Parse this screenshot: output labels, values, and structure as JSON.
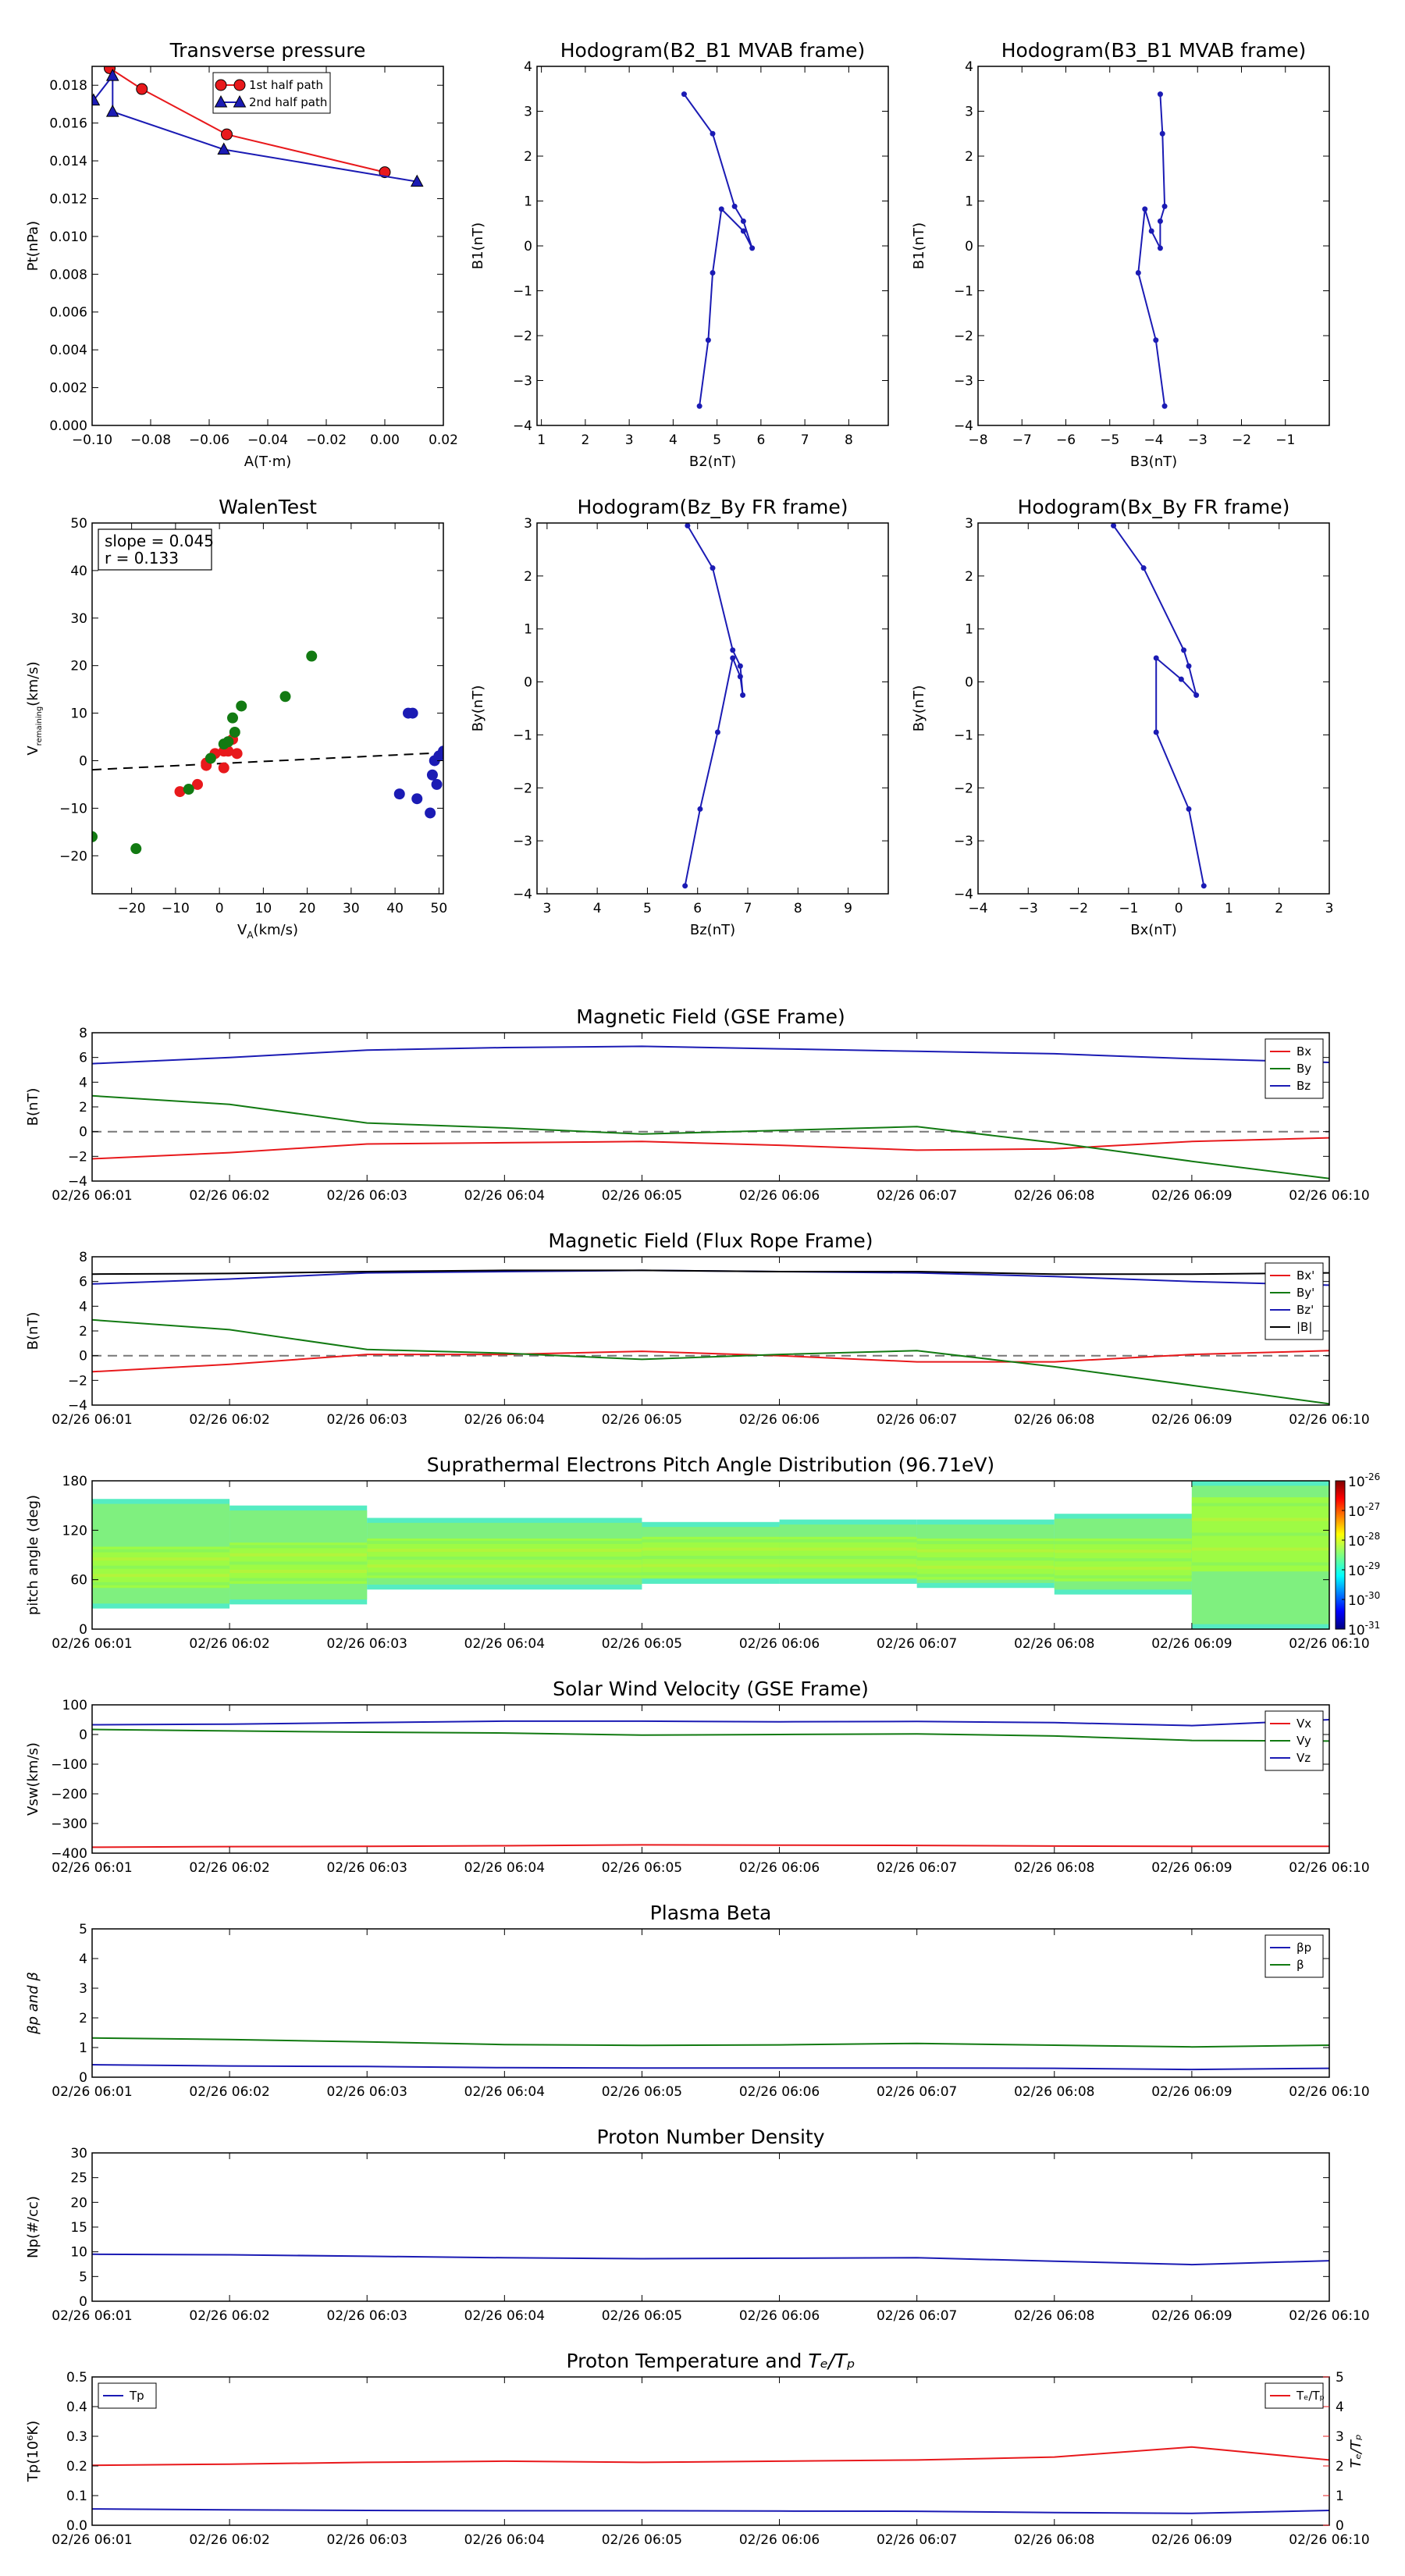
{
  "chart_data": [
    {
      "id": "tp",
      "type": "line",
      "title": "Transverse pressure",
      "xlabel": "A(T·m)",
      "ylabel": "Pt(nPa)",
      "xlim": [
        -0.1,
        0.02
      ],
      "ylim": [
        0.0,
        0.019
      ],
      "xticks": [
        -0.1,
        -0.08,
        -0.06,
        -0.04,
        -0.02,
        0.0,
        0.02
      ],
      "xtick_labels": [
        "−0.10",
        "−0.08",
        "−0.06",
        "−0.04",
        "−0.02",
        "0.00",
        "0.02"
      ],
      "yticks": [
        0.0,
        0.002,
        0.004,
        0.006,
        0.008,
        0.01,
        0.012,
        0.014,
        0.016,
        0.018
      ],
      "ytick_labels": [
        "0.000",
        "0.002",
        "0.004",
        "0.006",
        "0.008",
        "0.010",
        "0.012",
        "0.014",
        "0.016",
        "0.018"
      ],
      "legend_position": "top-center",
      "series": [
        {
          "name": "1st half path",
          "color": "#e8191c",
          "marker": "circle",
          "x": [
            -0.0995,
            -0.094,
            -0.083,
            -0.054,
            0.0
          ],
          "y": [
            0.0195,
            0.0189,
            0.0178,
            0.0154,
            0.0134
          ]
        },
        {
          "name": "2nd half path",
          "color": "#1b1bb4",
          "marker": "triangle",
          "x": [
            -0.0995,
            -0.093,
            -0.093,
            -0.055,
            0.011
          ],
          "y": [
            0.0172,
            0.0185,
            0.0166,
            0.0146,
            0.0129
          ]
        }
      ]
    },
    {
      "id": "h1",
      "type": "line",
      "title": "Hodogram(B2_B1 MVAB frame)",
      "xlabel": "B2(nT)",
      "ylabel": "B1(nT)",
      "xlim": [
        0.9,
        8.9
      ],
      "ylim": [
        -4,
        4
      ],
      "xticks": [
        1,
        2,
        3,
        4,
        5,
        6,
        7,
        8
      ],
      "xtick_labels": [
        "1",
        "2",
        "3",
        "4",
        "5",
        "6",
        "7",
        "8"
      ],
      "yticks": [
        -4,
        -3,
        -2,
        -1,
        0,
        1,
        2,
        3,
        4
      ],
      "ytick_labels": [
        "−4",
        "−3",
        "−2",
        "−1",
        "0",
        "1",
        "2",
        "3",
        "4"
      ],
      "series": [
        {
          "color": "#1b1bb4",
          "marker": "dot",
          "x": [
            4.25,
            4.9,
            5.4,
            5.6,
            5.8,
            5.6,
            5.1,
            4.9,
            4.8,
            4.6
          ],
          "y": [
            3.38,
            2.5,
            0.88,
            0.55,
            -0.05,
            0.33,
            0.82,
            -0.6,
            -2.1,
            -3.57
          ]
        }
      ]
    },
    {
      "id": "h2",
      "type": "line",
      "title": "Hodogram(B3_B1 MVAB frame)",
      "xlabel": "B3(nT)",
      "ylabel": "B1(nT)",
      "xlim": [
        -8,
        0
      ],
      "ylim": [
        -4,
        4
      ],
      "xticks": [
        -8,
        -7,
        -6,
        -5,
        -4,
        -3,
        -2,
        -1
      ],
      "xtick_labels": [
        "−8",
        "−7",
        "−6",
        "−5",
        "−4",
        "−3",
        "−2",
        "−1"
      ],
      "yticks": [
        -4,
        -3,
        -2,
        -1,
        0,
        1,
        2,
        3,
        4
      ],
      "ytick_labels": [
        "−4",
        "−3",
        "−2",
        "−1",
        "0",
        "1",
        "2",
        "3",
        "4"
      ],
      "series": [
        {
          "color": "#1b1bb4",
          "marker": "dot",
          "x": [
            -3.85,
            -3.8,
            -3.75,
            -3.85,
            -3.85,
            -4.05,
            -4.2,
            -4.35,
            -3.95,
            -3.75
          ],
          "y": [
            3.38,
            2.5,
            0.88,
            0.55,
            -0.05,
            0.33,
            0.82,
            -0.6,
            -2.1,
            -3.57
          ]
        }
      ]
    },
    {
      "id": "walen",
      "type": "scatter",
      "title": "WalenTest",
      "xlabel": "V",
      "xlabel_sub": "A",
      "xlabel_unit": "(km/s)",
      "ylabel": "V",
      "ylabel_sub": "remaining",
      "ylabel_unit": "(km/s)",
      "xlim": [
        -29,
        51
      ],
      "ylim": [
        -28,
        50
      ],
      "xticks": [
        -20,
        -10,
        0,
        10,
        20,
        30,
        40,
        50
      ],
      "xtick_labels": [
        "−20",
        "−10",
        "0",
        "10",
        "20",
        "30",
        "40",
        "50"
      ],
      "yticks": [
        -20,
        -10,
        0,
        10,
        20,
        30,
        40,
        50
      ],
      "ytick_labels": [
        "−20",
        "−10",
        "0",
        "10",
        "20",
        "30",
        "40",
        "50"
      ],
      "annotation": [
        "slope = 0.045",
        "r = 0.133"
      ],
      "fit_line": {
        "slope": 0.045,
        "intercept": -0.6,
        "color": "#000000",
        "dashed": true
      },
      "series": [
        {
          "color": "#e8191c",
          "x": [
            -9,
            -5,
            -3,
            -3,
            -1,
            1,
            1,
            2,
            3,
            4
          ],
          "y": [
            -6.5,
            -5,
            -1,
            -0.5,
            1.5,
            2,
            -1.5,
            2,
            4.5,
            1.5
          ]
        },
        {
          "color": "#127a12",
          "x": [
            -29,
            -19,
            -7,
            -2,
            1,
            2,
            3,
            3.5,
            5,
            15,
            21
          ],
          "y": [
            -16,
            -18.5,
            -6,
            0.5,
            3.5,
            4,
            9,
            6,
            11.5,
            13.5,
            22
          ]
        },
        {
          "color": "#1b1bb4",
          "x": [
            41,
            44,
            45,
            48,
            48.5,
            49,
            49.5,
            50,
            51,
            43
          ],
          "y": [
            -7,
            10,
            -8,
            -11,
            -3,
            0,
            -5,
            1,
            2,
            10
          ]
        }
      ]
    },
    {
      "id": "h3",
      "type": "line",
      "title": "Hodogram(Bz_By FR frame)",
      "xlabel": "Bz(nT)",
      "ylabel": "By(nT)",
      "xlim": [
        2.8,
        9.8
      ],
      "ylim": [
        -4,
        3
      ],
      "xticks": [
        3,
        4,
        5,
        6,
        7,
        8,
        9
      ],
      "xtick_labels": [
        "3",
        "4",
        "5",
        "6",
        "7",
        "8",
        "9"
      ],
      "yticks": [
        -4,
        -3,
        -2,
        -1,
        0,
        1,
        2,
        3
      ],
      "ytick_labels": [
        "−4",
        "−3",
        "−2",
        "−1",
        "0",
        "1",
        "2",
        "3"
      ],
      "series": [
        {
          "color": "#1b1bb4",
          "marker": "dot",
          "x": [
            5.8,
            6.3,
            6.7,
            6.85,
            6.9,
            6.85,
            6.7,
            6.4,
            6.05,
            5.75
          ],
          "y": [
            2.95,
            2.15,
            0.6,
            0.3,
            -0.25,
            0.1,
            0.45,
            -0.95,
            -2.4,
            -3.85
          ]
        }
      ]
    },
    {
      "id": "h4",
      "type": "line",
      "title": "Hodogram(Bx_By FR frame)",
      "xlabel": "Bx(nT)",
      "ylabel": "By(nT)",
      "xlim": [
        -4,
        3
      ],
      "ylim": [
        -4,
        3
      ],
      "xticks": [
        -4,
        -3,
        -2,
        -1,
        0,
        1,
        2,
        3
      ],
      "xtick_labels": [
        "−4",
        "−3",
        "−2",
        "−1",
        "0",
        "1",
        "2",
        "3"
      ],
      "yticks": [
        -4,
        -3,
        -2,
        -1,
        0,
        1,
        2,
        3
      ],
      "ytick_labels": [
        "−4",
        "−3",
        "−2",
        "−1",
        "0",
        "1",
        "2",
        "3"
      ],
      "series": [
        {
          "color": "#1b1bb4",
          "marker": "dot",
          "x": [
            -1.3,
            -0.7,
            0.1,
            0.2,
            0.35,
            0.05,
            -0.45,
            -0.45,
            0.2,
            0.5
          ],
          "y": [
            2.95,
            2.15,
            0.6,
            0.3,
            -0.25,
            0.05,
            0.45,
            -0.95,
            -2.4,
            -3.85
          ]
        }
      ]
    },
    {
      "id": "mf_gse",
      "type": "line",
      "title": "Magnetic Field (GSE Frame)",
      "ylabel": "B(nT)",
      "ylim": [
        -4,
        8
      ],
      "yticks": [
        -4,
        -2,
        0,
        2,
        4,
        6,
        8
      ],
      "ytick_labels": [
        "−4",
        "−2",
        "0",
        "2",
        "4",
        "6",
        "8"
      ],
      "zero_line": true,
      "legend_position": "top-right",
      "series": [
        {
          "name": "Bx",
          "color": "#e8191c",
          "values": [
            -2.2,
            -1.7,
            -1.0,
            -0.9,
            -0.8,
            -1.1,
            -1.5,
            -1.4,
            -0.8,
            -0.5
          ]
        },
        {
          "name": "By",
          "color": "#127a12",
          "values": [
            2.9,
            2.2,
            0.7,
            0.3,
            -0.2,
            0.1,
            0.4,
            -0.9,
            -2.4,
            -3.8
          ]
        },
        {
          "name": "Bz",
          "color": "#1b1bb4",
          "values": [
            5.5,
            6.0,
            6.6,
            6.8,
            6.9,
            6.7,
            6.5,
            6.3,
            5.9,
            5.6
          ]
        }
      ]
    },
    {
      "id": "mf_fr",
      "type": "line",
      "title": "Magnetic Field (Flux Rope Frame)",
      "ylabel": "B(nT)",
      "ylim": [
        -4,
        8
      ],
      "yticks": [
        -4,
        -2,
        0,
        2,
        4,
        6,
        8
      ],
      "ytick_labels": [
        "−4",
        "−2",
        "0",
        "2",
        "4",
        "6",
        "8"
      ],
      "zero_line": true,
      "legend_position": "top-right",
      "series": [
        {
          "name": "Bx'",
          "color": "#e8191c",
          "values": [
            -1.3,
            -0.7,
            0.1,
            0.1,
            0.35,
            0.0,
            -0.5,
            -0.5,
            0.1,
            0.4
          ]
        },
        {
          "name": "By'",
          "color": "#127a12",
          "values": [
            2.9,
            2.1,
            0.5,
            0.2,
            -0.3,
            0.1,
            0.4,
            -0.9,
            -2.4,
            -3.9
          ]
        },
        {
          "name": "Bz'",
          "color": "#1b1bb4",
          "values": [
            5.8,
            6.2,
            6.7,
            6.8,
            6.9,
            6.8,
            6.7,
            6.4,
            6.0,
            5.7
          ]
        },
        {
          "name": "|B|",
          "color": "#000000",
          "values": [
            6.6,
            6.65,
            6.8,
            6.9,
            6.9,
            6.8,
            6.8,
            6.6,
            6.6,
            6.7
          ]
        }
      ]
    },
    {
      "id": "pad",
      "type": "heatmap",
      "title": "Suprathermal Electrons Pitch Angle Distribution (96.71eV)",
      "ylabel": "pitch angle (deg)",
      "ylim": [
        0,
        180
      ],
      "yticks": [
        0,
        60,
        120,
        180
      ],
      "ytick_labels": [
        "0",
        "60",
        "120",
        "180"
      ],
      "colorbar": {
        "ticks": [
          -31,
          -30,
          -29,
          -28,
          -27,
          -26
        ],
        "tick_base": "10",
        "tick_exponents": [
          "-31",
          "-30",
          "-29",
          "-28",
          "-27",
          "-26"
        ]
      },
      "blocks": [
        {
          "t0": 0,
          "t1": 1,
          "lo": 25,
          "hi": 158,
          "core": [
            50,
            100
          ]
        },
        {
          "t0": 1,
          "t1": 2,
          "lo": 30,
          "hi": 150,
          "core": [
            55,
            105
          ]
        },
        {
          "t0": 2,
          "t1": 4,
          "lo": 48,
          "hi": 135,
          "core": [
            62,
            110
          ]
        },
        {
          "t0": 4,
          "t1": 5,
          "lo": 55,
          "hi": 130,
          "core": [
            62,
            112
          ]
        },
        {
          "t0": 5,
          "t1": 6,
          "lo": 55,
          "hi": 133,
          "core": [
            62,
            112
          ]
        },
        {
          "t0": 6,
          "t1": 7,
          "lo": 50,
          "hi": 133,
          "core": [
            60,
            110
          ]
        },
        {
          "t0": 7,
          "t1": 8,
          "lo": 42,
          "hi": 140,
          "core": [
            58,
            110
          ]
        },
        {
          "t0": 8,
          "t1": 9,
          "lo": 0,
          "hi": 180,
          "core": [
            70,
            160
          ]
        }
      ]
    },
    {
      "id": "vsw",
      "type": "line",
      "title": "Solar Wind Velocity (GSE Frame)",
      "ylabel": "Vsw(km/s)",
      "ylim": [
        -400,
        100
      ],
      "yticks": [
        -400,
        -300,
        -200,
        -100,
        0,
        100
      ],
      "ytick_labels": [
        "−400",
        "−300",
        "−200",
        "−100",
        "0",
        "100"
      ],
      "legend_position": "top-right",
      "series": [
        {
          "name": "Vx",
          "color": "#e8191c",
          "values": [
            -380,
            -378,
            -377,
            -375,
            -372,
            -373,
            -374,
            -376,
            -377,
            -377
          ]
        },
        {
          "name": "Vy",
          "color": "#127a12",
          "values": [
            17,
            12,
            8,
            5,
            -2,
            0,
            2,
            -5,
            -20,
            -22
          ]
        },
        {
          "name": "Vz",
          "color": "#1b1bb4",
          "values": [
            33,
            35,
            40,
            45,
            45,
            43,
            44,
            40,
            30,
            50
          ]
        }
      ]
    },
    {
      "id": "beta",
      "type": "line",
      "title": "Plasma Beta",
      "ylabel": "βp and β",
      "ylim": [
        0,
        5
      ],
      "yticks": [
        0,
        1,
        2,
        3,
        4,
        5
      ],
      "ytick_labels": [
        "0",
        "1",
        "2",
        "3",
        "4",
        "5"
      ],
      "legend_position": "top-right",
      "series": [
        {
          "name": "βp",
          "color": "#1b1bb4",
          "values": [
            0.42,
            0.38,
            0.36,
            0.32,
            0.31,
            0.31,
            0.31,
            0.3,
            0.26,
            0.3
          ]
        },
        {
          "name": "β",
          "color": "#127a12",
          "values": [
            1.32,
            1.27,
            1.19,
            1.1,
            1.07,
            1.09,
            1.14,
            1.08,
            1.02,
            1.08
          ]
        }
      ]
    },
    {
      "id": "np",
      "type": "line",
      "title": "Proton Number Density",
      "ylabel": "Np(#/cc)",
      "ylim": [
        0,
        30
      ],
      "yticks": [
        0,
        5,
        10,
        15,
        20,
        25,
        30
      ],
      "ytick_labels": [
        "0",
        "5",
        "10",
        "15",
        "20",
        "25",
        "30"
      ],
      "series": [
        {
          "color": "#1b1bb4",
          "values": [
            9.5,
            9.4,
            9.1,
            8.8,
            8.6,
            8.7,
            8.8,
            8.1,
            7.4,
            8.2
          ]
        }
      ]
    },
    {
      "id": "temp",
      "type": "line",
      "title_prefix": "Proton Temperature and ",
      "title_math": "Tₑ/Tₚ",
      "ylabel": "Tp(10⁶K)",
      "ylabel_right": "Tₑ/Tₚ",
      "ylim": [
        0,
        0.5
      ],
      "ylim_right": [
        0,
        5
      ],
      "yticks": [
        0,
        0.1,
        0.2,
        0.3,
        0.4,
        0.5
      ],
      "ytick_labels": [
        "0.0",
        "0.1",
        "0.2",
        "0.3",
        "0.4",
        "0.5"
      ],
      "yticks_right": [
        0,
        1,
        2,
        3,
        4,
        5
      ],
      "ytick_labels_right": [
        "0",
        "1",
        "2",
        "3",
        "4",
        "5"
      ],
      "legend_left": {
        "name": "Tp",
        "color": "#1b1bb4"
      },
      "legend_right": {
        "name": "Tₑ/Tₚ",
        "color": "#e8191c"
      },
      "series": [
        {
          "name": "Tp",
          "color": "#1b1bb4",
          "axis": "left",
          "values": [
            0.055,
            0.052,
            0.05,
            0.049,
            0.049,
            0.048,
            0.047,
            0.043,
            0.04,
            0.05
          ]
        },
        {
          "name": "Tₑ/Tₚ",
          "color": "#e8191c",
          "axis": "right",
          "values": [
            2.02,
            2.06,
            2.12,
            2.16,
            2.12,
            2.16,
            2.2,
            2.3,
            2.64,
            2.2
          ]
        }
      ]
    }
  ],
  "time_axis": {
    "labels": [
      "02/26 06:01",
      "02/26 06:02",
      "02/26 06:03",
      "02/26 06:04",
      "02/26 06:05",
      "02/26 06:06",
      "02/26 06:07",
      "02/26 06:08",
      "02/26 06:09",
      "02/26 06:10"
    ]
  }
}
